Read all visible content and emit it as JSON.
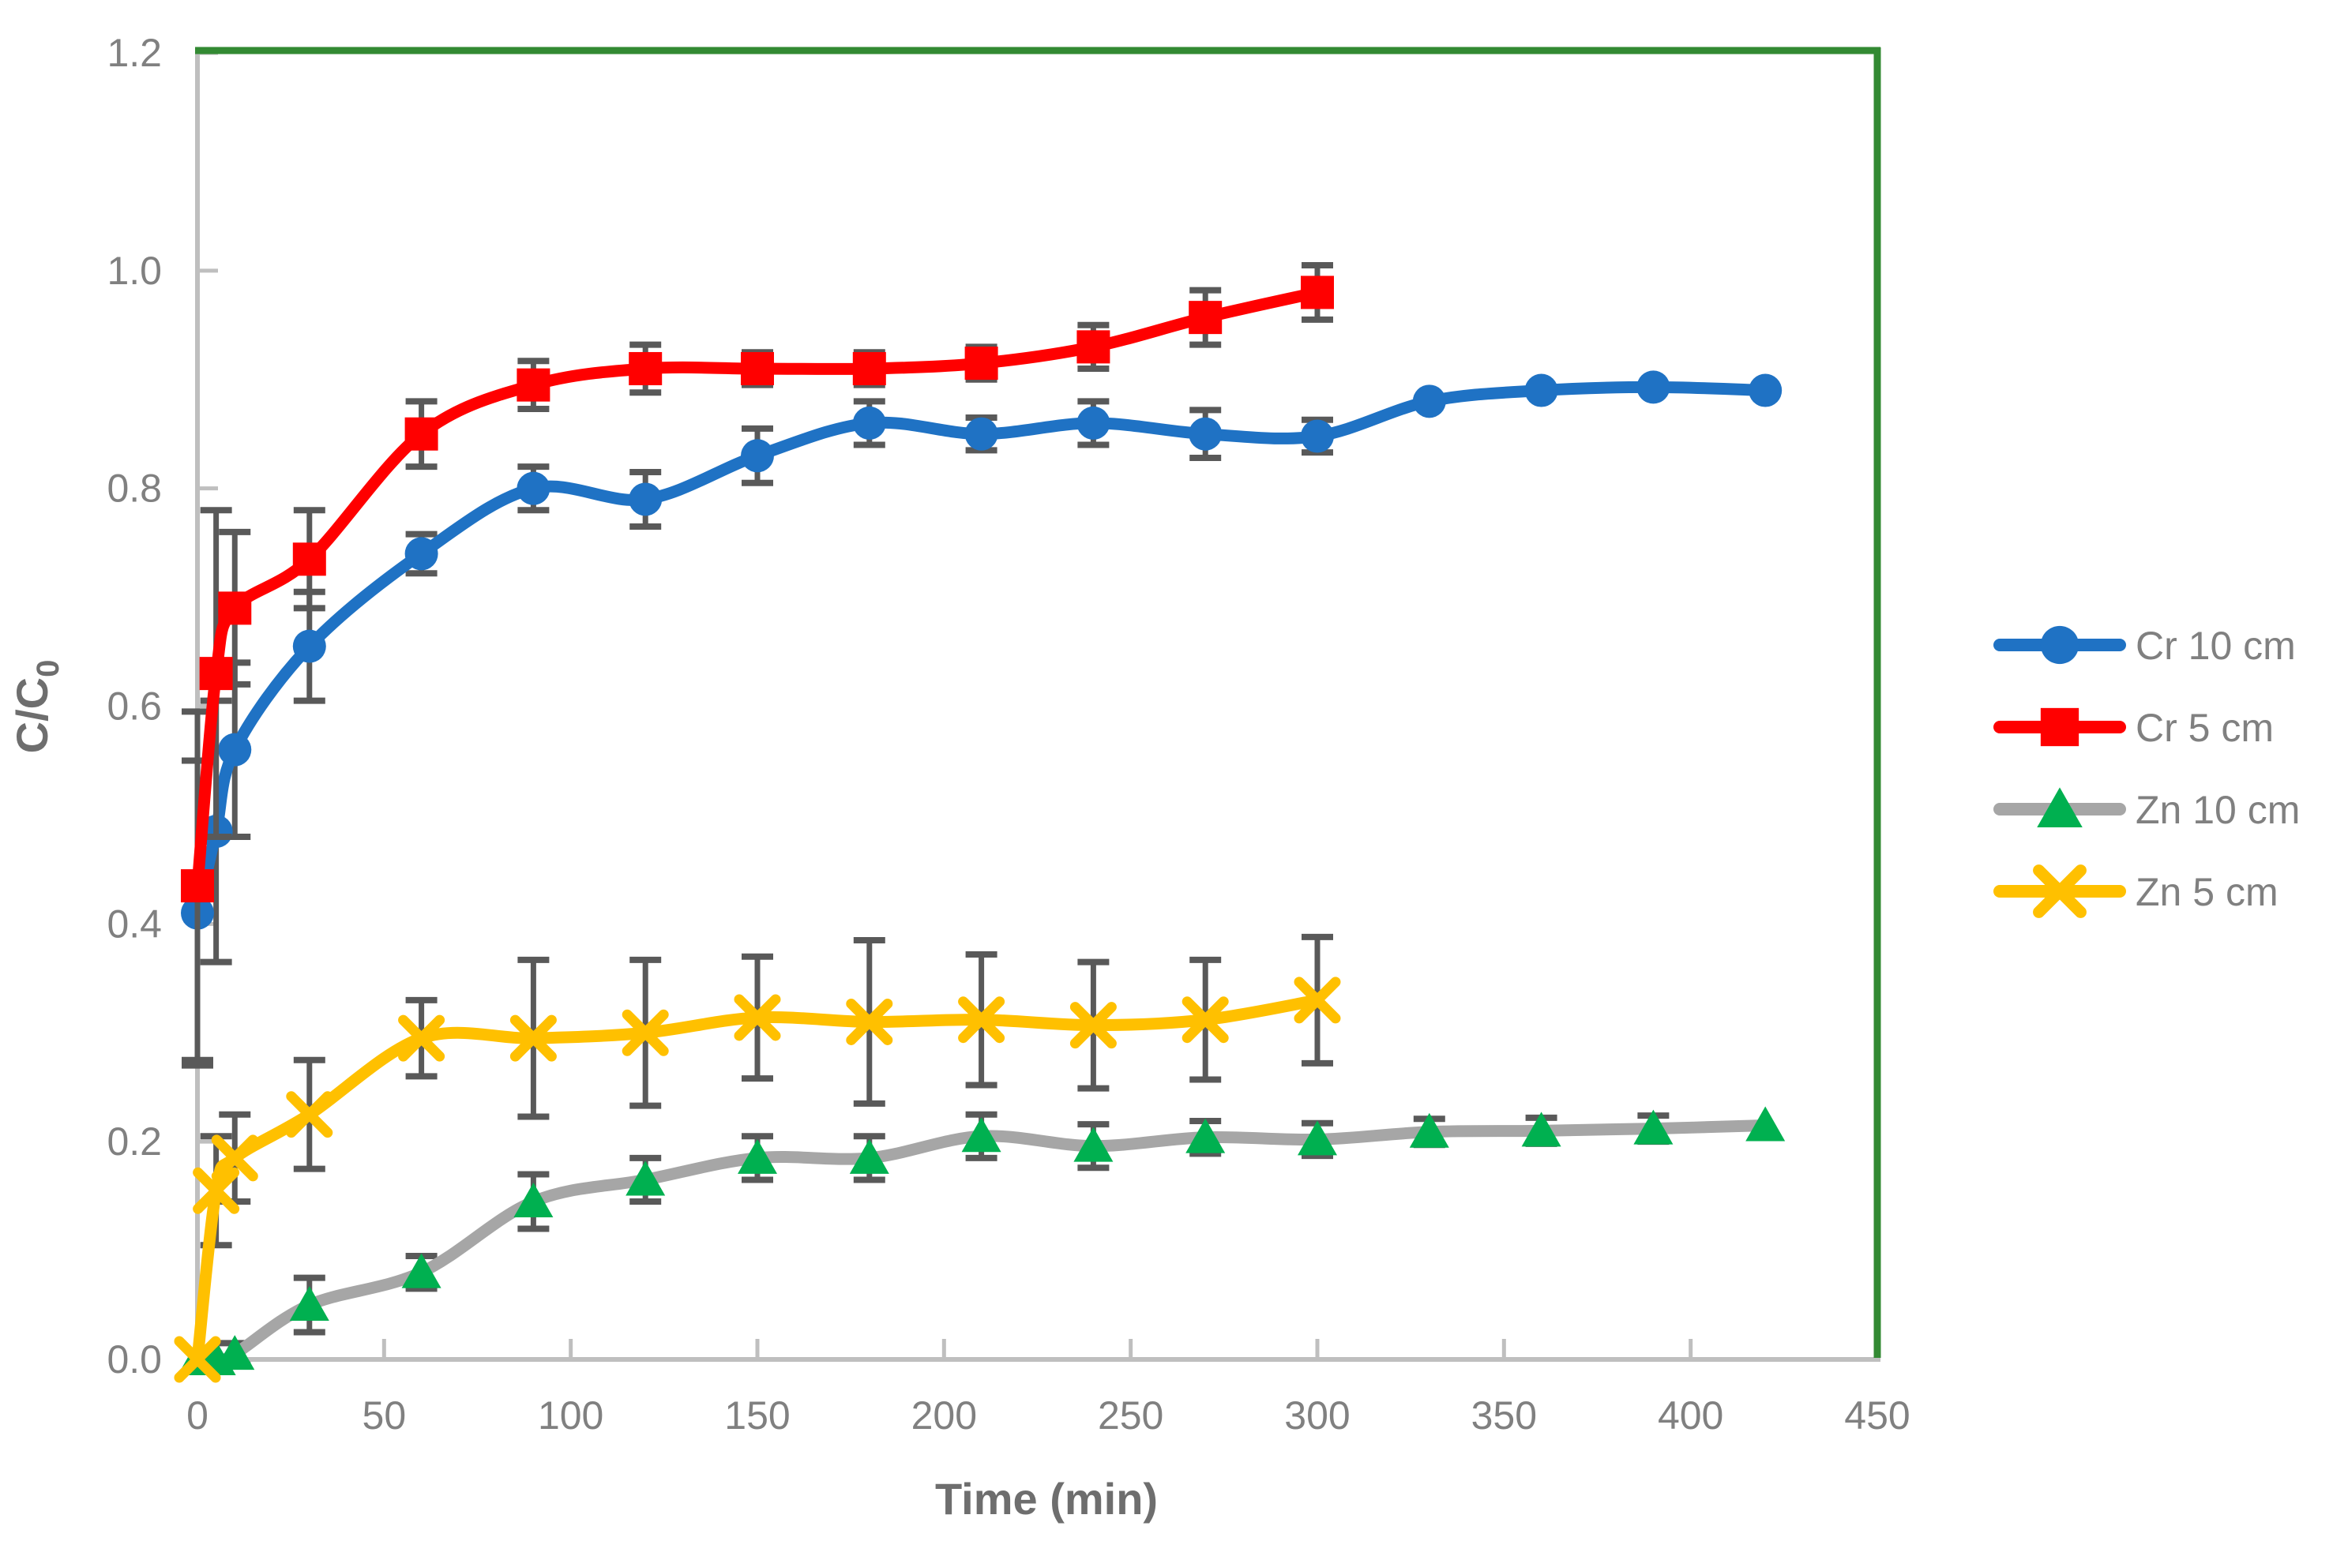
{
  "chart_data": {
    "type": "line",
    "title": "",
    "xlabel": "Time (min)",
    "ylabel": "C/C",
    "ylabel_sub": "0",
    "xlim": [
      0,
      450
    ],
    "ylim": [
      0,
      1.2
    ],
    "xtick_step": 50,
    "ytick_step": 0.2,
    "xtick_labels": [
      "0",
      "50",
      "100",
      "150",
      "200",
      "250",
      "300",
      "350",
      "400",
      "450"
    ],
    "ytick_labels": [
      "0.0",
      "0.2",
      "0.4",
      "0.6",
      "0.8",
      "1.0",
      "1.2"
    ],
    "grid": false,
    "legend_position": "right-center",
    "series": [
      {
        "name": "Cr 10 cm",
        "marker": "circle",
        "line_color": "#1F72C4",
        "marker_color": "#1F72C4",
        "x": [
          0,
          5,
          10,
          30,
          60,
          90,
          120,
          150,
          180,
          210,
          240,
          270,
          300,
          330,
          360,
          390,
          420
        ],
        "y": [
          0.41,
          0.485,
          0.56,
          0.655,
          0.74,
          0.8,
          0.79,
          0.83,
          0.86,
          0.85,
          0.86,
          0.85,
          0.848,
          0.88,
          0.89,
          0.893,
          0.89
        ],
        "yerr": [
          0.14,
          0.12,
          0.08,
          0.05,
          0.018,
          0.02,
          0.025,
          0.025,
          0.02,
          0.015,
          0.02,
          0.022,
          0.015,
          0,
          0,
          0,
          0
        ]
      },
      {
        "name": "Cr 5 cm",
        "marker": "square",
        "line_color": "#FF0000",
        "marker_color": "#FF0000",
        "x": [
          0,
          5,
          10,
          30,
          60,
          90,
          120,
          150,
          180,
          210,
          240,
          270,
          300
        ],
        "y": [
          0.435,
          0.63,
          0.69,
          0.735,
          0.85,
          0.895,
          0.91,
          0.91,
          0.91,
          0.915,
          0.93,
          0.957,
          0.98
        ],
        "yerr": [
          0.16,
          0.15,
          0.07,
          0.045,
          0.03,
          0.022,
          0.022,
          0.015,
          0.015,
          0.015,
          0.02,
          0.025,
          0.025
        ]
      },
      {
        "name": "Zn 10 cm",
        "marker": "triangle",
        "line_color": "#A6A6A6",
        "marker_color": "#00B050",
        "x": [
          0,
          5,
          10,
          30,
          60,
          90,
          120,
          150,
          180,
          210,
          240,
          270,
          300,
          330,
          360,
          390,
          420
        ],
        "y": [
          0,
          0,
          0.005,
          0.05,
          0.08,
          0.145,
          0.165,
          0.185,
          0.185,
          0.205,
          0.196,
          0.204,
          0.202,
          0.209,
          0.21,
          0.212,
          0.215
        ],
        "yerr": [
          0,
          0,
          0.01,
          0.025,
          0.015,
          0.025,
          0.02,
          0.02,
          0.02,
          0.02,
          0.02,
          0.015,
          0.015,
          0.012,
          0.012,
          0.012,
          0
        ]
      },
      {
        "name": "Zn 5 cm",
        "marker": "x",
        "line_color": "#FFC000",
        "marker_color": "#FFC000",
        "x": [
          0,
          5,
          10,
          30,
          60,
          90,
          120,
          150,
          180,
          210,
          240,
          270,
          300
        ],
        "y": [
          0,
          0.155,
          0.185,
          0.225,
          0.295,
          0.295,
          0.3,
          0.314,
          0.31,
          0.312,
          0.307,
          0.312,
          0.33
        ],
        "yerr": [
          0,
          0.05,
          0.04,
          0.05,
          0.035,
          0.072,
          0.067,
          0.056,
          0.075,
          0.06,
          0.058,
          0.055,
          0.058
        ]
      }
    ],
    "colors": {
      "axis_line": "#BFBFBF",
      "plot_border": "#338A33",
      "error_bar": "#595959",
      "tick_text": "#808080",
      "axis_title_text": "#6e6e6e",
      "background": "#FFFFFF"
    }
  }
}
